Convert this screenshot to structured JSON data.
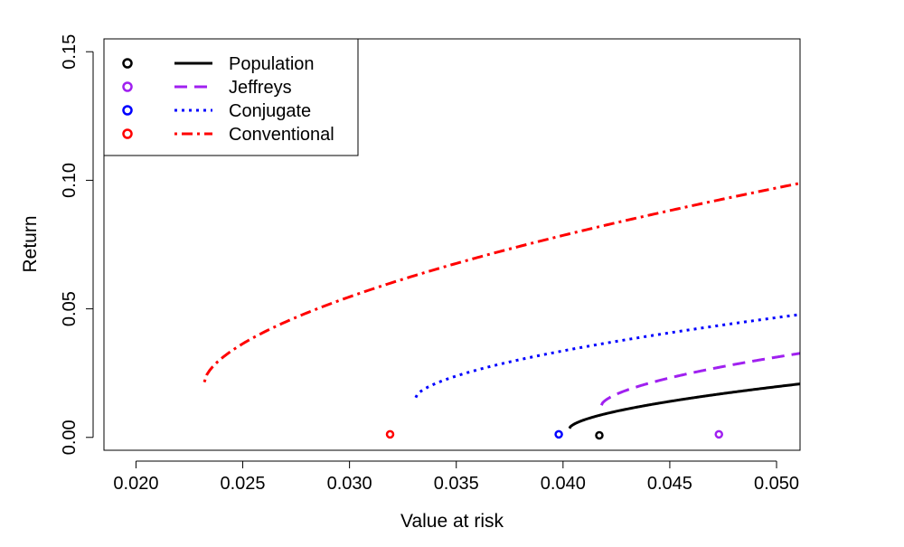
{
  "chart_data": {
    "type": "line",
    "title": "",
    "xlabel": "Value at risk",
    "ylabel": "Return",
    "xlim": [
      0.0185,
      0.0511
    ],
    "ylim": [
      -0.005,
      0.155
    ],
    "x_ticks": [
      0.02,
      0.025,
      0.03,
      0.035,
      0.04,
      0.045,
      0.05
    ],
    "x_tick_labels": [
      "0.020",
      "0.025",
      "0.030",
      "0.035",
      "0.040",
      "0.045",
      "0.050"
    ],
    "y_ticks": [
      0.0,
      0.05,
      0.1,
      0.15
    ],
    "y_tick_labels": [
      "0.00",
      "0.05",
      "0.10",
      "0.15"
    ],
    "legend_position": "top-left",
    "series": [
      {
        "name": "Population",
        "color": "#000000",
        "dash": "solid",
        "frontier": {
          "x_min": 0.0403,
          "y_min": 0.0035,
          "a": 0.00415,
          "p": 0.6,
          "y_at_x_max": 0.0124
        },
        "point": {
          "x": 0.0417,
          "y": 0.0008
        }
      },
      {
        "name": "Jeffreys",
        "color": "#a020f0",
        "dash": "dashed",
        "frontier": {
          "x_min": 0.0418,
          "y_min": 0.0125,
          "a": 0.0053,
          "p": 0.6,
          "y_at_x_max": 0.0335
        },
        "point": {
          "x": 0.0473,
          "y": 0.0012
        }
      },
      {
        "name": "Conjugate",
        "color": "#0000ff",
        "dash": "dotted",
        "frontier": {
          "x_min": 0.0331,
          "y_min": 0.0155,
          "a": 0.0057,
          "p": 0.6,
          "y_at_x_max": 0.0548
        },
        "point": {
          "x": 0.0398,
          "y": 0.0012
        }
      },
      {
        "name": "Conventional",
        "color": "#ff0000",
        "dash": "dotdash",
        "frontier": {
          "x_min": 0.0232,
          "y_min": 0.0215,
          "a": 0.0105,
          "p": 0.6,
          "y_at_x_max": 0.1035
        },
        "point": {
          "x": 0.0319,
          "y": 0.0012
        }
      }
    ]
  }
}
